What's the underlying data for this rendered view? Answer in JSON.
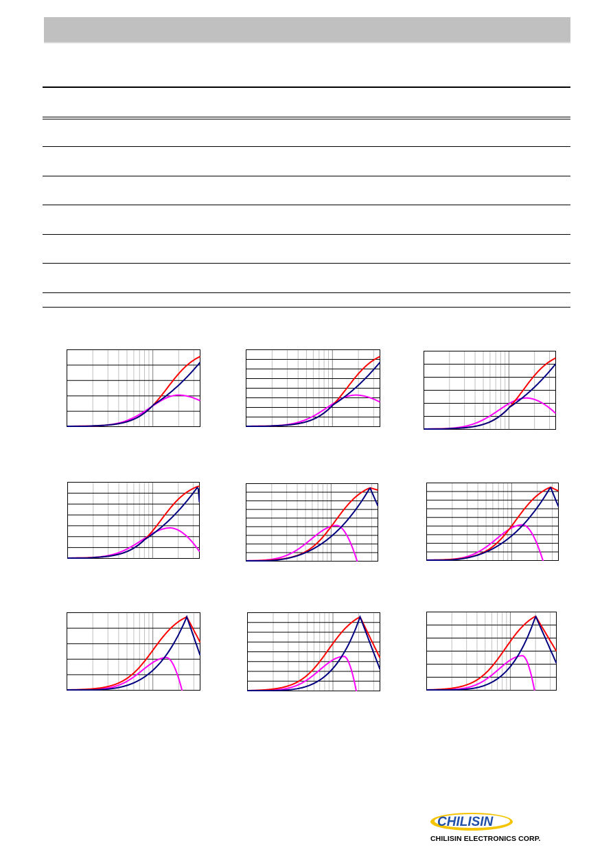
{
  "footer": {
    "company_name": "CHILISIN ELECTRONICS CORP.",
    "logo_text": "CHILISIN"
  },
  "colors": {
    "header_bar": "#c0c0c0",
    "series_a": "#ff0000",
    "series_b": "#000080",
    "series_c": "#ff00ff"
  },
  "chart_data": [
    {
      "type": "line",
      "axis": "x-log",
      "x_decades": 1.55,
      "ylim": [
        0,
        1
      ],
      "h_grid": 5,
      "peak_x": 1.05,
      "b_offset": 0.13,
      "b_sharp": 1.0,
      "c_peak": 0.84,
      "c_width": 0.3,
      "c_max": 0.41,
      "c_fall": 1.1,
      "a_end": 0.98
    },
    {
      "type": "line",
      "axis": "x-log",
      "x_decades": 1.55,
      "ylim": [
        0,
        1
      ],
      "h_grid": 8,
      "peak_x": 1.05,
      "b_offset": 0.13,
      "b_sharp": 1.0,
      "c_peak": 0.82,
      "c_width": 0.3,
      "c_max": 0.41,
      "c_fall": 1.1,
      "a_end": 0.98
    },
    {
      "type": "line",
      "axis": "x-log",
      "x_decades": 1.55,
      "ylim": [
        0,
        1
      ],
      "h_grid": 6,
      "peak_x": 1.05,
      "b_offset": 0.13,
      "b_sharp": 1.0,
      "c_peak": 0.78,
      "c_width": 0.3,
      "c_max": 0.4,
      "c_fall": 1.4,
      "a_end": 0.98
    },
    {
      "type": "line",
      "axis": "x-log",
      "x_decades": 1.55,
      "ylim": [
        0,
        1
      ],
      "h_grid": 7,
      "peak_x": 0.99,
      "b_offset": 0.13,
      "b_sharp": 1.0,
      "c_peak": 0.78,
      "c_width": 0.3,
      "c_max": 0.4,
      "c_fall": 1.8,
      "a_end": 0.95
    },
    {
      "type": "line",
      "axis": "x-log",
      "x_decades": 1.55,
      "ylim": [
        0,
        1
      ],
      "h_grid": 9,
      "peak_x": 0.94,
      "b_offset": 0.12,
      "b_sharp": 1.2,
      "c_peak": 0.69,
      "c_width": 0.28,
      "c_max": 0.46,
      "c_fall": 3.0,
      "a_end": 0.92
    },
    {
      "type": "line",
      "axis": "x-log",
      "x_decades": 1.55,
      "ylim": [
        0,
        1
      ],
      "h_grid": 9,
      "peak_x": 0.94,
      "b_offset": 0.12,
      "b_sharp": 1.2,
      "c_peak": 0.73,
      "c_width": 0.28,
      "c_max": 0.46,
      "c_fall": 3.0,
      "a_end": 0.9
    },
    {
      "type": "line",
      "axis": "x-log",
      "x_decades": 1.55,
      "ylim": [
        0,
        1
      ],
      "h_grid": 5,
      "peak_x": 0.9,
      "b_offset": 0.1,
      "b_sharp": 1.8,
      "c_peak": 0.75,
      "c_width": 0.26,
      "c_max": 0.42,
      "c_fall": 4.0,
      "a_end": 0.62
    },
    {
      "type": "line",
      "axis": "x-log",
      "x_decades": 1.55,
      "ylim": [
        0,
        1
      ],
      "h_grid": 8,
      "peak_x": 0.85,
      "b_offset": 0.1,
      "b_sharp": 2.0,
      "c_peak": 0.73,
      "c_width": 0.26,
      "c_max": 0.44,
      "c_fall": 5.0,
      "a_end": 0.42
    },
    {
      "type": "line",
      "axis": "x-log",
      "x_decades": 1.55,
      "ylim": [
        0,
        1
      ],
      "h_grid": 6,
      "peak_x": 0.84,
      "b_offset": 0.1,
      "b_sharp": 2.0,
      "c_peak": 0.74,
      "c_width": 0.26,
      "c_max": 0.44,
      "c_fall": 5.0,
      "a_end": 0.5
    }
  ]
}
